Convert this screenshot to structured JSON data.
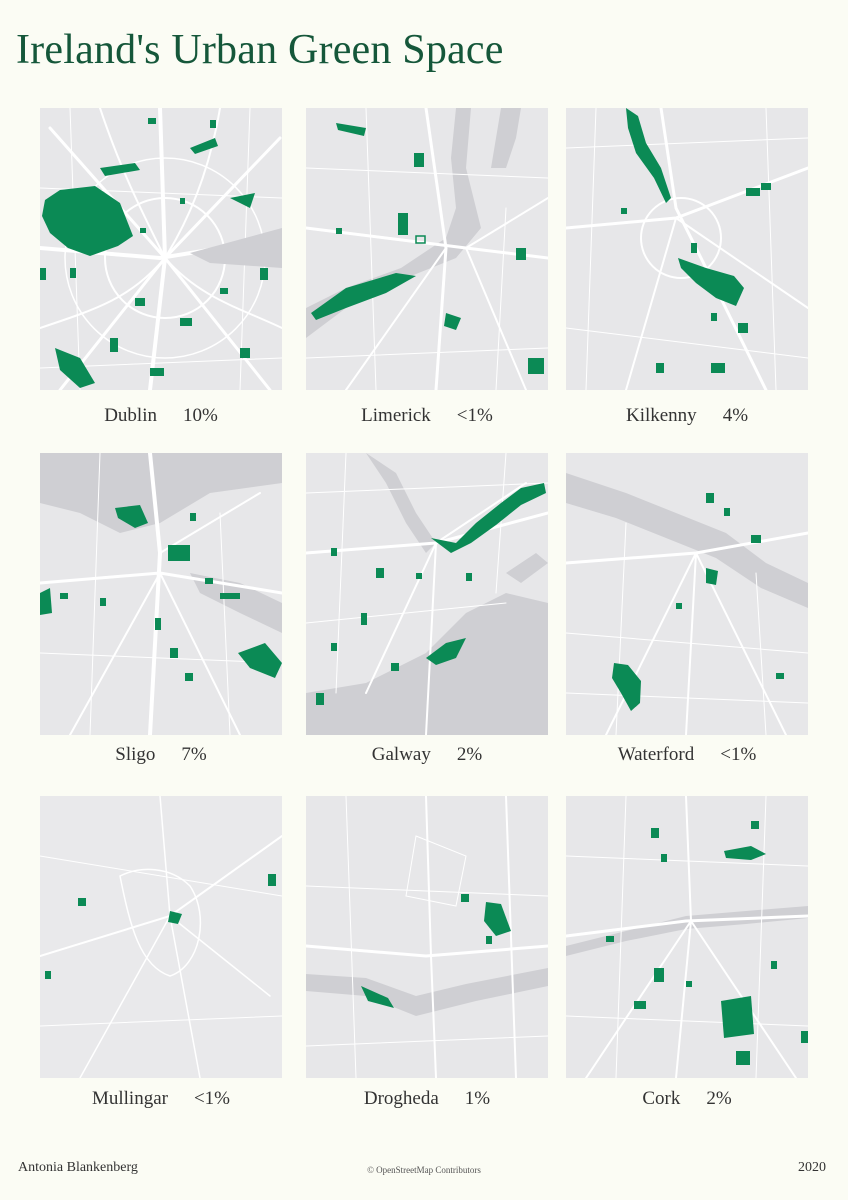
{
  "title": "Ireland's Urban Green Space",
  "colors": {
    "green": "#0b8a55",
    "background": "#fbfcf4",
    "map_land": "#e7e7e9",
    "water": "#cfcfd3",
    "roads": "#ffffff"
  },
  "cities": [
    {
      "name": "Dublin",
      "percent": "10%"
    },
    {
      "name": "Limerick",
      "percent": "<1%"
    },
    {
      "name": "Kilkenny",
      "percent": "4%"
    },
    {
      "name": "Sligo",
      "percent": "7%"
    },
    {
      "name": "Galway",
      "percent": "2%"
    },
    {
      "name": "Waterford",
      "percent": "<1%"
    },
    {
      "name": "Mullingar",
      "percent": "<1%"
    },
    {
      "name": "Drogheda",
      "percent": "1%"
    },
    {
      "name": "Cork",
      "percent": "2%"
    }
  ],
  "footer": {
    "author": "Antonia Blankenberg",
    "credit": "© OpenStreetMap Contributors",
    "year": "2020"
  }
}
